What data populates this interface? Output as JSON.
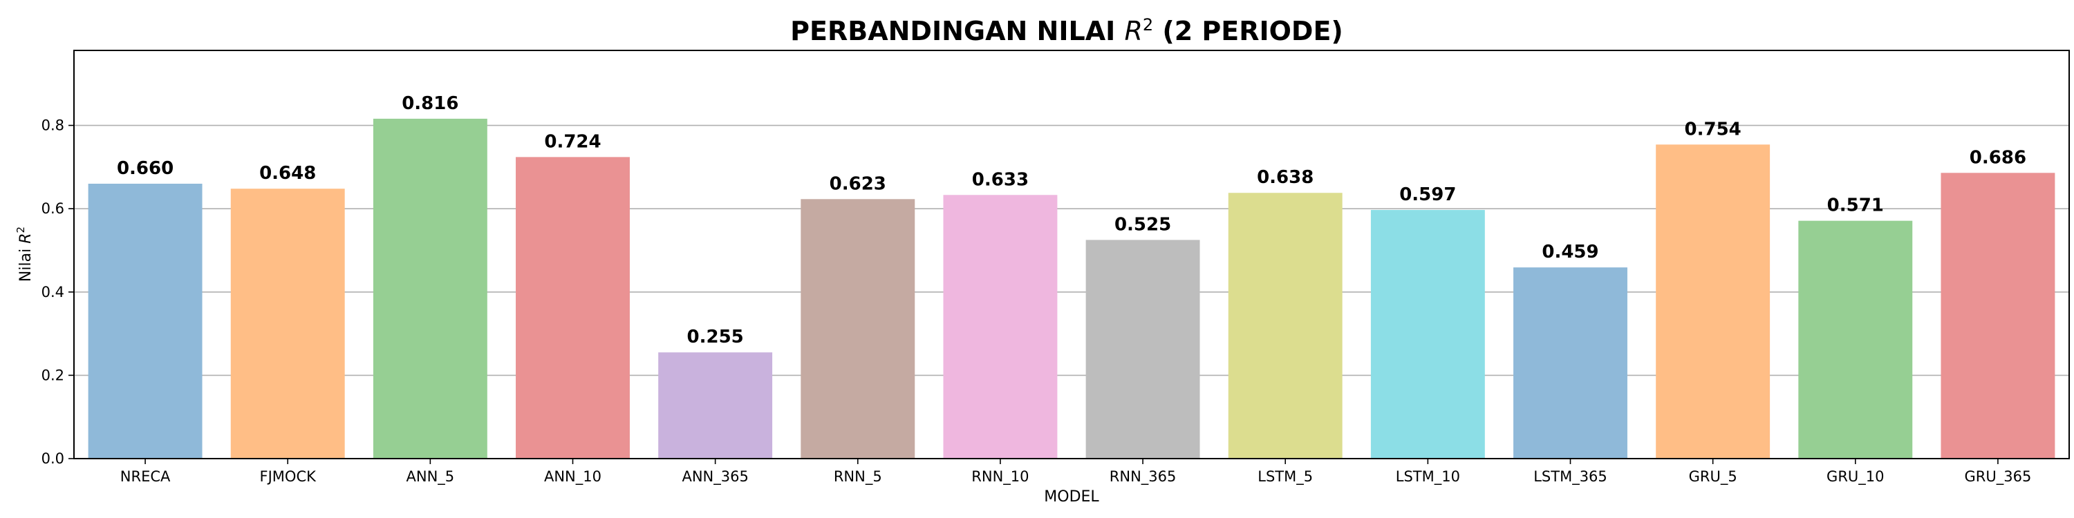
{
  "chart_data": {
    "type": "bar",
    "title_prefix": "PERBANDINGAN NILAI ",
    "title_symbol": "R",
    "title_sup": "2",
    "title_suffix": " (2 PERIODE)",
    "xlabel": "MODEL",
    "ylabel_prefix": "Nilai ",
    "ylabel_symbol": "R",
    "ylabel_sup": "2",
    "ylim": [
      0,
      0.98
    ],
    "yticks": [
      "0.0",
      "0.2",
      "0.4",
      "0.6",
      "0.8"
    ],
    "grid": "y",
    "categories": [
      "NRECA",
      "FJMOCK",
      "ANN_5",
      "ANN_10",
      "ANN_365",
      "RNN_5",
      "RNN_10",
      "RNN_365",
      "LSTM_5",
      "LSTM_10",
      "LSTM_365",
      "GRU_5",
      "GRU_10",
      "GRU_365"
    ],
    "values": [
      0.66,
      0.648,
      0.816,
      0.724,
      0.255,
      0.623,
      0.633,
      0.525,
      0.638,
      0.597,
      0.459,
      0.754,
      0.571,
      0.686
    ],
    "value_labels": [
      "0.660",
      "0.648",
      "0.816",
      "0.724",
      "0.255",
      "0.623",
      "0.633",
      "0.525",
      "0.638",
      "0.597",
      "0.459",
      "0.754",
      "0.571",
      "0.686"
    ],
    "colors": [
      "#8fb9d9",
      "#ffbe86",
      "#96cf93",
      "#ea9293",
      "#c9b2dd",
      "#c5aaa2",
      "#efb7df",
      "#bdbdbd",
      "#dcdd8f",
      "#8cdee6",
      "#8fb9d9",
      "#ffbe86",
      "#96cf93",
      "#ea9293"
    ]
  }
}
